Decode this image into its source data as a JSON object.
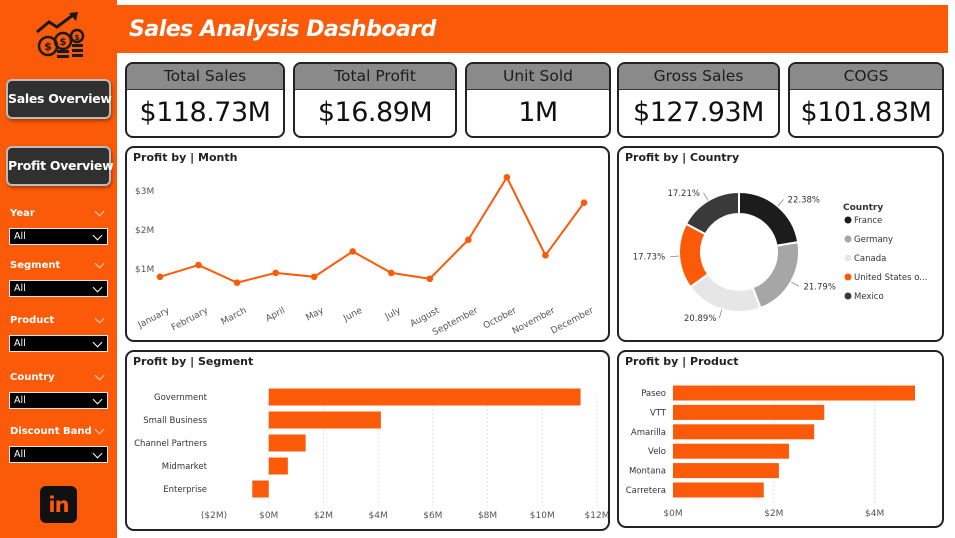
{
  "sidebar": {
    "nav": [
      {
        "label": "Sales Overview"
      },
      {
        "label": "Profit Overview"
      }
    ],
    "filters": [
      {
        "label": "Year",
        "value": "All"
      },
      {
        "label": "Segment",
        "value": "All"
      },
      {
        "label": "Product",
        "value": "All"
      },
      {
        "label": "Country",
        "value": "All"
      },
      {
        "label": "Discount Band",
        "value": "All"
      }
    ],
    "linkedin_text": "in"
  },
  "header": {
    "title": "Sales Analysis Dashboard"
  },
  "kpis": [
    {
      "label": "Total Sales",
      "value": "$118.73M"
    },
    {
      "label": "Total Profit",
      "value": "$16.89M"
    },
    {
      "label": "Unit Sold",
      "value": "1M"
    },
    {
      "label": "Gross Sales",
      "value": "$127.93M"
    },
    {
      "label": "COGS",
      "value": "$101.83M"
    }
  ],
  "colors": {
    "accent": "#fb5b09",
    "dark": "#303030",
    "kpi_header": "#8a8a8a"
  },
  "charts": {
    "month": {
      "title": "Profit by | Month",
      "chart_data": {
        "type": "line",
        "x": [
          "January",
          "February",
          "March",
          "April",
          "May",
          "June",
          "July",
          "August",
          "September",
          "October",
          "November",
          "December"
        ],
        "y": [
          0.8,
          1.1,
          0.65,
          0.9,
          0.8,
          1.45,
          0.9,
          0.75,
          1.75,
          3.35,
          1.35,
          2.7
        ],
        "y_ticks": [
          "$1M",
          "$2M",
          "$3M"
        ],
        "y_tick_values": [
          1,
          2,
          3
        ],
        "ylim": [
          0,
          3.5
        ],
        "unit": "M",
        "color": "#fb5b09"
      }
    },
    "country": {
      "title": "Profit by | Country",
      "chart_data": {
        "type": "pie",
        "legend_title": "Country",
        "legend_position": "right",
        "labels": [
          "France",
          "Germany",
          "Canada",
          "United States o...",
          "Mexico"
        ],
        "values": [
          22.38,
          21.79,
          20.89,
          17.73,
          17.21
        ],
        "value_labels": [
          "22.38%",
          "21.79%",
          "20.89%",
          "17.73%",
          "17.21%"
        ],
        "colors": [
          "#1c1c1c",
          "#a6a6a6",
          "#e6e6e6",
          "#fb5b09",
          "#3a3a3a"
        ]
      }
    },
    "segment": {
      "title": "Profit by | Segment",
      "chart_data": {
        "type": "bar",
        "orientation": "horizontal",
        "categories": [
          "Government",
          "Small Business",
          "Channel Partners",
          "Midmarket",
          "Enterprise"
        ],
        "values": [
          11.4,
          4.1,
          1.35,
          0.7,
          -0.6
        ],
        "x_ticks": [
          "($2M)",
          "$0M",
          "$2M",
          "$4M",
          "$6M",
          "$8M",
          "$10M",
          "$12M"
        ],
        "x_tick_values": [
          -2,
          0,
          2,
          4,
          6,
          8,
          10,
          12
        ],
        "xlim": [
          -2,
          12
        ],
        "color": "#fb5b09"
      }
    },
    "product": {
      "title": "Profit by | Product",
      "chart_data": {
        "type": "bar",
        "orientation": "horizontal",
        "categories": [
          "Paseo",
          "VTT",
          "Amarilla",
          "Velo",
          "Montana",
          "Carretera"
        ],
        "values": [
          4.8,
          3.0,
          2.8,
          2.3,
          2.1,
          1.8
        ],
        "x_ticks": [
          "$0M",
          "$2M",
          "$4M"
        ],
        "x_tick_values": [
          0,
          2,
          4
        ],
        "xlim": [
          0,
          4.8
        ],
        "color": "#fb5b09"
      }
    }
  }
}
